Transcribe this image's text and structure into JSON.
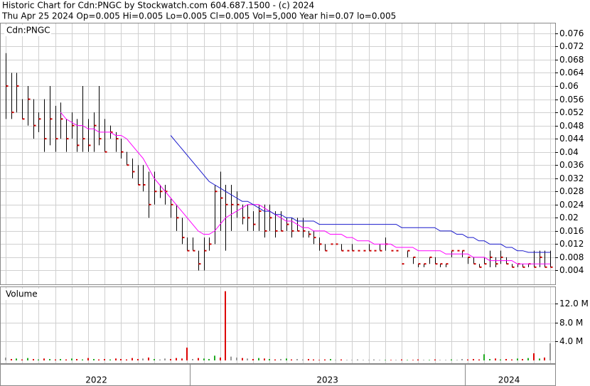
{
  "chart_data": [
    {
      "type": "ohlc",
      "title": "Historic Chart for Cdn:PNGC by Stockwatch.com 604.687.1500 - (c) 2024",
      "subtitle": "Thu Apr 25 2024  Op=0.005  Hi=0.005  Lo=0.005  Cl=0.005  Vol=5,000  Year hi=0.07  lo=0.005",
      "label": "Cdn:PNGC",
      "categories": [
        "2022",
        "2022",
        "2022",
        "2022",
        "2022",
        "2022",
        "2022",
        "2022",
        "2022",
        "2022",
        "2022",
        "2022",
        "2022",
        "2022",
        "2022",
        "2022",
        "2022",
        "2022",
        "2022",
        "2022",
        "2022",
        "2022",
        "2022",
        "2022",
        "2022",
        "2022",
        "2022",
        "2022",
        "2022",
        "2022",
        "2022",
        "2022",
        "2022",
        "2022",
        "2023",
        "2023",
        "2023",
        "2023",
        "2023",
        "2023",
        "2023",
        "2023",
        "2023",
        "2023",
        "2023",
        "2023",
        "2023",
        "2023",
        "2023",
        "2023",
        "2023",
        "2023",
        "2023",
        "2023",
        "2023",
        "2023",
        "2023",
        "2023",
        "2023",
        "2023",
        "2023",
        "2023",
        "2023",
        "2023",
        "2023",
        "2023",
        "2023",
        "2023",
        "2023",
        "2023",
        "2023",
        "2023",
        "2023",
        "2023",
        "2023",
        "2023",
        "2023",
        "2023",
        "2023",
        "2023",
        "2023",
        "2023",
        "2023",
        "2023",
        "2024",
        "2024",
        "2024",
        "2024",
        "2024",
        "2024",
        "2024",
        "2024",
        "2024",
        "2024",
        "2024",
        "2024",
        "2024",
        "2024",
        "2024",
        "2024"
      ],
      "high": [
        0.07,
        0.064,
        0.064,
        0.056,
        0.06,
        0.056,
        0.052,
        0.056,
        0.06,
        0.054,
        0.055,
        0.05,
        0.052,
        0.05,
        0.06,
        0.05,
        0.052,
        0.06,
        0.05,
        0.048,
        0.046,
        0.044,
        0.04,
        0.038,
        0.036,
        0.036,
        0.034,
        0.034,
        0.03,
        0.03,
        0.026,
        0.024,
        0.02,
        0.014,
        0.014,
        0.01,
        0.014,
        0.014,
        0.03,
        0.034,
        0.03,
        0.03,
        0.028,
        0.024,
        0.024,
        0.022,
        0.024,
        0.024,
        0.024,
        0.022,
        0.022,
        0.02,
        0.02,
        0.02,
        0.02,
        0.016,
        0.016,
        0.014,
        0.012,
        0.012,
        0.012,
        0.012,
        0.01,
        0.012,
        0.01,
        0.01,
        0.012,
        0.01,
        0.012,
        0.014,
        0.01,
        0.01,
        0.006,
        0.01,
        0.008,
        0.006,
        0.006,
        0.008,
        0.008,
        0.006,
        0.006,
        0.01,
        0.01,
        0.01,
        0.008,
        0.008,
        0.006,
        0.008,
        0.01,
        0.008,
        0.01,
        0.008,
        0.006,
        0.006,
        0.006,
        0.006,
        0.01,
        0.01,
        0.01,
        0.01
      ],
      "low": [
        0.05,
        0.05,
        0.052,
        0.05,
        0.048,
        0.044,
        0.046,
        0.04,
        0.042,
        0.04,
        0.044,
        0.04,
        0.044,
        0.04,
        0.04,
        0.04,
        0.04,
        0.042,
        0.04,
        0.044,
        0.04,
        0.038,
        0.036,
        0.032,
        0.03,
        0.028,
        0.02,
        0.024,
        0.026,
        0.024,
        0.02,
        0.016,
        0.012,
        0.01,
        0.01,
        0.004,
        0.004,
        0.01,
        0.012,
        0.016,
        0.01,
        0.016,
        0.02,
        0.018,
        0.016,
        0.016,
        0.016,
        0.014,
        0.016,
        0.014,
        0.016,
        0.016,
        0.014,
        0.016,
        0.014,
        0.014,
        0.012,
        0.01,
        0.01,
        0.012,
        0.012,
        0.01,
        0.01,
        0.01,
        0.01,
        0.01,
        0.01,
        0.01,
        0.01,
        0.01,
        0.01,
        0.01,
        0.006,
        0.008,
        0.006,
        0.005,
        0.005,
        0.006,
        0.006,
        0.005,
        0.005,
        0.008,
        0.01,
        0.008,
        0.006,
        0.006,
        0.005,
        0.006,
        0.005,
        0.005,
        0.006,
        0.006,
        0.005,
        0.005,
        0.005,
        0.005,
        0.005,
        0.005,
        0.005,
        0.005
      ],
      "close": [
        0.06,
        0.052,
        0.06,
        0.05,
        0.056,
        0.048,
        0.05,
        0.044,
        0.05,
        0.044,
        0.05,
        0.044,
        0.048,
        0.042,
        0.044,
        0.042,
        0.048,
        0.044,
        0.04,
        0.046,
        0.044,
        0.04,
        0.036,
        0.034,
        0.03,
        0.03,
        0.024,
        0.028,
        0.028,
        0.028,
        0.024,
        0.02,
        0.014,
        0.01,
        0.01,
        0.006,
        0.01,
        0.012,
        0.028,
        0.026,
        0.024,
        0.024,
        0.024,
        0.02,
        0.02,
        0.018,
        0.022,
        0.016,
        0.02,
        0.016,
        0.016,
        0.018,
        0.016,
        0.016,
        0.016,
        0.015,
        0.014,
        0.012,
        0.01,
        0.012,
        0.012,
        0.01,
        0.01,
        0.01,
        0.01,
        0.01,
        0.01,
        0.01,
        0.01,
        0.012,
        0.01,
        0.01,
        0.006,
        0.01,
        0.008,
        0.006,
        0.006,
        0.008,
        0.006,
        0.006,
        0.006,
        0.01,
        0.01,
        0.01,
        0.008,
        0.006,
        0.005,
        0.006,
        0.008,
        0.006,
        0.008,
        0.006,
        0.005,
        0.006,
        0.005,
        0.006,
        0.005,
        0.008,
        0.005,
        0.005
      ],
      "bar_color": "#000000",
      "close_color": "#cc0000",
      "ma": [
        {
          "color": "#ff00ff",
          "values": [
            null,
            null,
            null,
            null,
            null,
            null,
            null,
            null,
            null,
            null,
            0.052,
            0.05,
            0.049,
            0.048,
            0.048,
            0.047,
            0.047,
            0.046,
            0.046,
            0.046,
            0.045,
            0.045,
            0.044,
            0.042,
            0.04,
            0.038,
            0.035,
            0.032,
            0.03,
            0.028,
            0.026,
            0.024,
            0.022,
            0.02,
            0.018,
            0.016,
            0.015,
            0.015,
            0.016,
            0.018,
            0.02,
            0.021,
            0.022,
            0.023,
            0.024,
            0.024,
            0.024,
            0.023,
            0.022,
            0.021,
            0.02,
            0.019,
            0.019,
            0.018,
            0.017,
            0.017,
            0.016,
            0.016,
            0.016,
            0.015,
            0.015,
            0.015,
            0.014,
            0.014,
            0.013,
            0.013,
            0.013,
            0.012,
            0.012,
            0.012,
            0.012,
            0.011,
            0.011,
            0.011,
            0.011,
            0.01,
            0.01,
            0.01,
            0.01,
            0.01,
            0.009,
            0.009,
            0.009,
            0.009,
            0.009,
            0.008,
            0.008,
            0.008,
            0.007,
            0.007,
            0.007,
            0.007,
            0.007,
            0.006,
            0.006,
            0.006,
            0.006,
            0.006,
            0.006,
            0.006
          ]
        },
        {
          "color": "#1a1acc",
          "values": [
            null,
            null,
            null,
            null,
            null,
            null,
            null,
            null,
            null,
            null,
            null,
            null,
            null,
            null,
            null,
            null,
            null,
            null,
            null,
            null,
            null,
            null,
            null,
            null,
            null,
            null,
            null,
            null,
            null,
            null,
            0.045,
            0.043,
            0.041,
            0.039,
            0.037,
            0.035,
            0.033,
            0.031,
            0.03,
            0.029,
            0.028,
            0.027,
            0.026,
            0.025,
            0.025,
            0.024,
            0.023,
            0.022,
            0.022,
            0.021,
            0.021,
            0.02,
            0.02,
            0.019,
            0.019,
            0.019,
            0.019,
            0.018,
            0.018,
            0.018,
            0.018,
            0.018,
            0.018,
            0.018,
            0.018,
            0.018,
            0.018,
            0.018,
            0.018,
            0.018,
            0.018,
            0.018,
            0.017,
            0.017,
            0.017,
            0.017,
            0.017,
            0.017,
            0.017,
            0.016,
            0.016,
            0.016,
            0.015,
            0.015,
            0.014,
            0.014,
            0.013,
            0.013,
            0.012,
            0.012,
            0.012,
            0.011,
            0.011,
            0.01,
            0.01,
            0.0095,
            0.0095,
            0.0095,
            0.0095,
            0.0095
          ]
        }
      ],
      "ylim": [
        0,
        0.079
      ],
      "yticks": [
        0.004,
        0.008,
        0.012,
        0.016,
        0.02,
        0.024,
        0.028,
        0.032,
        0.036,
        0.04,
        0.044,
        0.048,
        0.052,
        0.056,
        0.06,
        0.064,
        0.068,
        0.072,
        0.076
      ],
      "grid": true
    },
    {
      "type": "bar",
      "title": "Volume",
      "values": [
        600000,
        300000,
        400000,
        200000,
        500000,
        300000,
        200000,
        400000,
        300000,
        200000,
        300000,
        200000,
        400000,
        300000,
        200000,
        500000,
        300000,
        200000,
        300000,
        200000,
        400000,
        300000,
        200000,
        500000,
        300000,
        400000,
        600000,
        300000,
        200000,
        400000,
        300000,
        500000,
        400000,
        2700000,
        300000,
        500000,
        400000,
        300000,
        1000000,
        600000,
        14600000,
        800000,
        600000,
        500000,
        400000,
        300000,
        500000,
        400000,
        300000,
        200000,
        300000,
        400000,
        200000,
        300000,
        200000,
        300000,
        200000,
        100000,
        200000,
        300000,
        100000,
        200000,
        100000,
        100000,
        200000,
        100000,
        100000,
        200000,
        100000,
        100000,
        100000,
        100000,
        200000,
        100000,
        100000,
        200000,
        100000,
        100000,
        200000,
        100000,
        100000,
        200000,
        100000,
        300000,
        200000,
        300000,
        200000,
        1300000,
        300000,
        400000,
        200000,
        300000,
        200000,
        400000,
        300000,
        500000,
        1500000,
        400000,
        600000,
        3600000
      ],
      "up_color": "#22aa22",
      "down_color": "#dd0000",
      "flat_color": "#999999",
      "ylim": [
        0,
        15600000
      ],
      "yticks": [
        {
          "value": 4000000,
          "label": "4.0 M"
        },
        {
          "value": 8000000,
          "label": "8.0 M"
        },
        {
          "value": 12000000,
          "label": "12.0 M"
        }
      ],
      "grid": true
    }
  ]
}
